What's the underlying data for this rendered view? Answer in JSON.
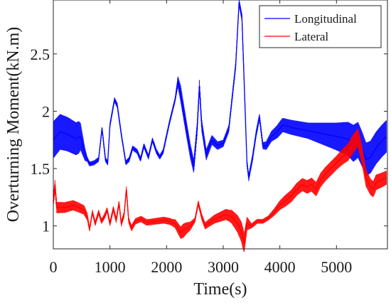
{
  "chart_data": {
    "type": "line",
    "xlabel": "Time(s)",
    "ylabel": "Overturning Moment(kN.m)",
    "xlim": [
      0,
      5900
    ],
    "ylim": [
      0.8,
      2.97
    ],
    "xticks": [
      "0",
      "1000",
      "2000",
      "3000",
      "4000",
      "5000"
    ],
    "yticks": [
      "1",
      "1.5",
      "2",
      "2.5"
    ],
    "xtick_values": [
      0,
      1000,
      2000,
      3000,
      4000,
      5000
    ],
    "ytick_values": [
      1,
      1.5,
      2,
      2.5
    ],
    "grid": false,
    "legend_position": "top-right",
    "series": [
      {
        "name": "Longitudinal",
        "color": "#0000ff",
        "band": [
          [
            0,
            0.16
          ],
          [
            450,
            0.14
          ],
          [
            600,
            0.02
          ],
          [
            1000,
            0.02
          ],
          [
            2150,
            0.02
          ],
          [
            2250,
            0.07
          ],
          [
            3000,
            0.03
          ],
          [
            3700,
            0.03
          ],
          [
            4000,
            0.06
          ],
          [
            4500,
            0.07
          ],
          [
            5000,
            0.12
          ],
          [
            5300,
            0.16
          ],
          [
            5600,
            0.14
          ],
          [
            5900,
            0.14
          ]
        ],
        "points": [
          [
            0,
            1.75
          ],
          [
            120,
            1.82
          ],
          [
            250,
            1.8
          ],
          [
            400,
            1.76
          ],
          [
            480,
            1.78
          ],
          [
            560,
            1.62
          ],
          [
            640,
            1.54
          ],
          [
            720,
            1.55
          ],
          [
            800,
            1.58
          ],
          [
            860,
            1.85
          ],
          [
            920,
            1.58
          ],
          [
            960,
            1.55
          ],
          [
            1000,
            1.88
          ],
          [
            1080,
            2.1
          ],
          [
            1130,
            2.05
          ],
          [
            1200,
            1.8
          ],
          [
            1280,
            1.55
          ],
          [
            1340,
            1.58
          ],
          [
            1400,
            1.68
          ],
          [
            1480,
            1.65
          ],
          [
            1540,
            1.58
          ],
          [
            1600,
            1.7
          ],
          [
            1680,
            1.6
          ],
          [
            1750,
            1.75
          ],
          [
            1820,
            1.65
          ],
          [
            1880,
            1.6
          ],
          [
            1940,
            1.65
          ],
          [
            2050,
            1.9
          ],
          [
            2150,
            2.1
          ],
          [
            2200,
            2.26
          ],
          [
            2250,
            2.15
          ],
          [
            2350,
            1.85
          ],
          [
            2420,
            1.65
          ],
          [
            2480,
            1.52
          ],
          [
            2540,
            1.85
          ],
          [
            2580,
            2.22
          ],
          [
            2620,
            1.88
          ],
          [
            2700,
            1.62
          ],
          [
            2800,
            1.75
          ],
          [
            2900,
            1.7
          ],
          [
            3000,
            1.72
          ],
          [
            3100,
            1.85
          ],
          [
            3220,
            2.4
          ],
          [
            3280,
            2.95
          ],
          [
            3330,
            2.82
          ],
          [
            3380,
            2.1
          ],
          [
            3420,
            1.55
          ],
          [
            3450,
            1.42
          ],
          [
            3520,
            1.6
          ],
          [
            3580,
            1.8
          ],
          [
            3640,
            1.95
          ],
          [
            3700,
            1.7
          ],
          [
            3760,
            1.7
          ],
          [
            3850,
            1.78
          ],
          [
            3950,
            1.82
          ],
          [
            4050,
            1.88
          ],
          [
            4200,
            1.86
          ],
          [
            4400,
            1.84
          ],
          [
            4600,
            1.82
          ],
          [
            4800,
            1.8
          ],
          [
            5000,
            1.78
          ],
          [
            5200,
            1.76
          ],
          [
            5300,
            1.72
          ],
          [
            5380,
            1.75
          ],
          [
            5460,
            1.66
          ],
          [
            5520,
            1.58
          ],
          [
            5600,
            1.6
          ],
          [
            5700,
            1.68
          ],
          [
            5800,
            1.74
          ],
          [
            5880,
            1.78
          ]
        ]
      },
      {
        "name": "Lateral",
        "color": "#ff0000",
        "band": [
          [
            0,
            0.05
          ],
          [
            550,
            0.04
          ],
          [
            650,
            0.02
          ],
          [
            2100,
            0.03
          ],
          [
            2300,
            0.06
          ],
          [
            2500,
            0.02
          ],
          [
            3100,
            0.05
          ],
          [
            3350,
            0.09
          ],
          [
            3500,
            0.02
          ],
          [
            3800,
            0.02
          ],
          [
            4100,
            0.05
          ],
          [
            4600,
            0.06
          ],
          [
            5000,
            0.06
          ],
          [
            5300,
            0.08
          ],
          [
            5900,
            0.06
          ]
        ],
        "points": [
          [
            0,
            1.22
          ],
          [
            30,
            1.35
          ],
          [
            60,
            1.16
          ],
          [
            200,
            1.16
          ],
          [
            350,
            1.18
          ],
          [
            450,
            1.16
          ],
          [
            540,
            1.14
          ],
          [
            600,
            1.08
          ],
          [
            640,
            0.97
          ],
          [
            690,
            1.12
          ],
          [
            740,
            1.02
          ],
          [
            800,
            1.12
          ],
          [
            850,
            1.04
          ],
          [
            900,
            1.08
          ],
          [
            950,
            1.14
          ],
          [
            1000,
            1.02
          ],
          [
            1060,
            1.15
          ],
          [
            1110,
            1.05
          ],
          [
            1160,
            1.2
          ],
          [
            1200,
            1.02
          ],
          [
            1250,
            1.1
          ],
          [
            1290,
            1.32
          ],
          [
            1330,
            1.05
          ],
          [
            1380,
            0.98
          ],
          [
            1450,
            1.04
          ],
          [
            1550,
            1.06
          ],
          [
            1650,
            1.03
          ],
          [
            1800,
            1.04
          ],
          [
            1950,
            1.05
          ],
          [
            2050,
            1.04
          ],
          [
            2150,
            1.02
          ],
          [
            2250,
            0.94
          ],
          [
            2350,
            0.98
          ],
          [
            2420,
            1.0
          ],
          [
            2500,
            1.05
          ],
          [
            2560,
            1.2
          ],
          [
            2620,
            1.08
          ],
          [
            2680,
            1.0
          ],
          [
            2760,
            1.03
          ],
          [
            2850,
            1.06
          ],
          [
            2950,
            1.08
          ],
          [
            3050,
            1.1
          ],
          [
            3150,
            1.08
          ],
          [
            3250,
            1.02
          ],
          [
            3320,
            0.95
          ],
          [
            3370,
            0.85
          ],
          [
            3420,
            1.02
          ],
          [
            3500,
            1.0
          ],
          [
            3600,
            1.04
          ],
          [
            3700,
            1.04
          ],
          [
            3800,
            1.07
          ],
          [
            3900,
            1.12
          ],
          [
            4000,
            1.18
          ],
          [
            4100,
            1.22
          ],
          [
            4200,
            1.26
          ],
          [
            4300,
            1.32
          ],
          [
            4400,
            1.36
          ],
          [
            4480,
            1.34
          ],
          [
            4560,
            1.36
          ],
          [
            4640,
            1.32
          ],
          [
            4720,
            1.4
          ],
          [
            4800,
            1.45
          ],
          [
            4900,
            1.5
          ],
          [
            5000,
            1.55
          ],
          [
            5100,
            1.6
          ],
          [
            5200,
            1.64
          ],
          [
            5300,
            1.72
          ],
          [
            5380,
            1.77
          ],
          [
            5450,
            1.62
          ],
          [
            5520,
            1.42
          ],
          [
            5600,
            1.34
          ],
          [
            5650,
            1.32
          ],
          [
            5700,
            1.38
          ],
          [
            5800,
            1.4
          ],
          [
            5880,
            1.42
          ]
        ]
      }
    ]
  }
}
